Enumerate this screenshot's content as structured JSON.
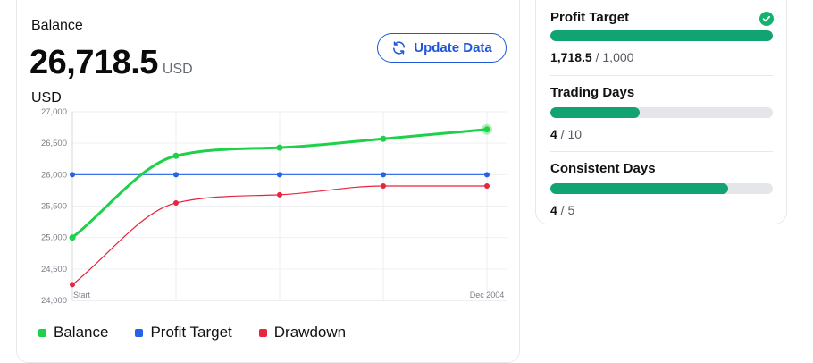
{
  "balance": {
    "label": "Balance",
    "value": "26,718.5",
    "unit": "USD",
    "chart_unit": "USD",
    "update_button_label": "Update Data",
    "update_icon": "refresh-icon"
  },
  "chart_data": {
    "type": "line",
    "x": [
      "Start",
      "",
      "",
      "",
      "Dec 2004"
    ],
    "ylim": [
      24000,
      27000
    ],
    "yticks": [
      24000,
      24500,
      25000,
      25500,
      26000,
      26500,
      27000
    ],
    "ytick_labels": [
      "24,000",
      "24,500",
      "25,000",
      "25,500",
      "26,000",
      "26,500",
      "27,000"
    ],
    "grid": true,
    "legend": "bottom-left",
    "series": [
      {
        "name": "Balance",
        "color": "#1fd14a",
        "values": [
          25000,
          26300,
          26430,
          26570,
          26718.5
        ]
      },
      {
        "name": "Profit Target",
        "color": "#2662e8",
        "values": [
          26000,
          26000,
          26000,
          26000,
          26000
        ]
      },
      {
        "name": "Drawdown",
        "color": "#e8243e",
        "values": [
          24250,
          25550,
          25680,
          25820,
          25820
        ]
      }
    ]
  },
  "legend": [
    {
      "label": "Balance",
      "color": "#1fd14a"
    },
    {
      "label": "Profit Target",
      "color": "#2662e8"
    },
    {
      "label": "Drawdown",
      "color": "#e8243e"
    }
  ],
  "metrics": [
    {
      "title": "Profit Target",
      "current": "1,718.5",
      "separator": " / ",
      "target": "1,000",
      "progress": 1.0,
      "completed": true,
      "icon": "check-circle-icon"
    },
    {
      "title": "Trading Days",
      "current": "4",
      "separator": " / ",
      "target": "10",
      "progress": 0.4,
      "completed": false
    },
    {
      "title": "Consistent Days",
      "current": "4",
      "separator": " / ",
      "target": "5",
      "progress": 0.8,
      "completed": false
    }
  ],
  "colors": {
    "accent": "#1f57d6",
    "progress": "#12a373",
    "complete": "#12b36e"
  }
}
